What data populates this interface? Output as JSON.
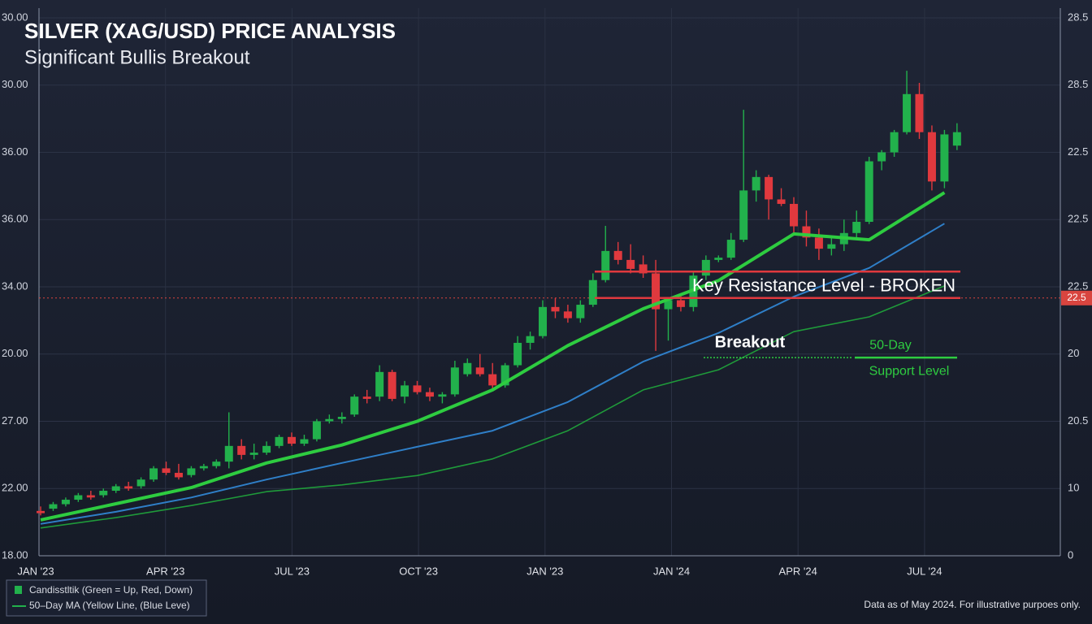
{
  "chart_data": {
    "type": "candlestick",
    "title": "SILVER (XAG/USD) PRICE ANALYSIS",
    "subtitle": "Significant Bullis Breakout",
    "ylim": [
      18,
      30
    ],
    "left_axis_labels": [
      "30.00",
      "30.00",
      "36.00",
      "36.00",
      "34.00",
      "20.00",
      "27.00",
      "22.00",
      "18.00"
    ],
    "right_axis_labels": [
      "28.5",
      "28.5",
      "22.5",
      "22.5",
      "22.5",
      "20",
      "20.5",
      "10",
      "0"
    ],
    "x_labels": [
      "JAN '23",
      "APR '23",
      "JUL '23",
      "OCT '23",
      "JAN '23",
      "JAN '24",
      "APR '24",
      "JUL '24"
    ],
    "up_color": "#22b14c",
    "down_color": "#e0393e",
    "candles": [
      {
        "open": 19.0,
        "high": 19.1,
        "low": 18.9,
        "close": 18.95
      },
      {
        "open": 19.05,
        "high": 19.2,
        "low": 19.0,
        "close": 19.15
      },
      {
        "open": 19.15,
        "high": 19.3,
        "low": 19.1,
        "close": 19.25
      },
      {
        "open": 19.25,
        "high": 19.4,
        "low": 19.2,
        "close": 19.35
      },
      {
        "open": 19.35,
        "high": 19.45,
        "low": 19.25,
        "close": 19.3
      },
      {
        "open": 19.35,
        "high": 19.5,
        "low": 19.3,
        "close": 19.45
      },
      {
        "open": 19.45,
        "high": 19.6,
        "low": 19.4,
        "close": 19.55
      },
      {
        "open": 19.55,
        "high": 19.65,
        "low": 19.45,
        "close": 19.5
      },
      {
        "open": 19.55,
        "high": 19.75,
        "low": 19.5,
        "close": 19.7
      },
      {
        "open": 19.7,
        "high": 20.0,
        "low": 19.65,
        "close": 19.95
      },
      {
        "open": 19.95,
        "high": 20.1,
        "low": 19.8,
        "close": 19.85
      },
      {
        "open": 19.85,
        "high": 20.05,
        "low": 19.7,
        "close": 19.75
      },
      {
        "open": 19.8,
        "high": 20.0,
        "low": 19.75,
        "close": 19.95
      },
      {
        "open": 19.95,
        "high": 20.05,
        "low": 19.9,
        "close": 20.0
      },
      {
        "open": 20.0,
        "high": 20.15,
        "low": 19.95,
        "close": 20.1
      },
      {
        "open": 20.1,
        "high": 21.2,
        "low": 19.95,
        "close": 20.45
      },
      {
        "open": 20.45,
        "high": 20.6,
        "low": 20.15,
        "close": 20.25
      },
      {
        "open": 20.25,
        "high": 20.5,
        "low": 20.15,
        "close": 20.3
      },
      {
        "open": 20.3,
        "high": 20.55,
        "low": 20.25,
        "close": 20.45
      },
      {
        "open": 20.45,
        "high": 20.7,
        "low": 20.4,
        "close": 20.65
      },
      {
        "open": 20.65,
        "high": 20.75,
        "low": 20.45,
        "close": 20.5
      },
      {
        "open": 20.5,
        "high": 20.7,
        "low": 20.45,
        "close": 20.6
      },
      {
        "open": 20.6,
        "high": 21.05,
        "low": 20.55,
        "close": 21.0
      },
      {
        "open": 21.0,
        "high": 21.15,
        "low": 20.95,
        "close": 21.05
      },
      {
        "open": 21.05,
        "high": 21.2,
        "low": 20.95,
        "close": 21.1
      },
      {
        "open": 21.15,
        "high": 21.6,
        "low": 21.1,
        "close": 21.55
      },
      {
        "open": 21.55,
        "high": 21.7,
        "low": 21.4,
        "close": 21.5
      },
      {
        "open": 21.55,
        "high": 22.25,
        "low": 21.45,
        "close": 22.1
      },
      {
        "open": 22.1,
        "high": 22.15,
        "low": 21.45,
        "close": 21.5
      },
      {
        "open": 21.55,
        "high": 21.9,
        "low": 21.4,
        "close": 21.8
      },
      {
        "open": 21.8,
        "high": 21.9,
        "low": 21.6,
        "close": 21.65
      },
      {
        "open": 21.65,
        "high": 21.75,
        "low": 21.45,
        "close": 21.55
      },
      {
        "open": 21.55,
        "high": 21.65,
        "low": 21.4,
        "close": 21.6
      },
      {
        "open": 21.6,
        "high": 22.35,
        "low": 21.55,
        "close": 22.2
      },
      {
        "open": 22.05,
        "high": 22.4,
        "low": 22.0,
        "close": 22.3
      },
      {
        "open": 22.2,
        "high": 22.5,
        "low": 22.0,
        "close": 22.05
      },
      {
        "open": 22.05,
        "high": 22.3,
        "low": 21.7,
        "close": 21.8
      },
      {
        "open": 21.8,
        "high": 22.3,
        "low": 21.75,
        "close": 22.25
      },
      {
        "open": 22.25,
        "high": 22.9,
        "low": 22.2,
        "close": 22.75
      },
      {
        "open": 22.75,
        "high": 23.0,
        "low": 22.6,
        "close": 22.9
      },
      {
        "open": 22.9,
        "high": 23.7,
        "low": 22.85,
        "close": 23.55
      },
      {
        "open": 23.55,
        "high": 23.75,
        "low": 23.3,
        "close": 23.45
      },
      {
        "open": 23.45,
        "high": 23.6,
        "low": 23.2,
        "close": 23.3
      },
      {
        "open": 23.3,
        "high": 23.7,
        "low": 23.2,
        "close": 23.6
      },
      {
        "open": 23.6,
        "high": 24.3,
        "low": 23.55,
        "close": 24.15
      },
      {
        "open": 24.15,
        "high": 25.36,
        "low": 24.1,
        "close": 24.8
      },
      {
        "open": 24.8,
        "high": 25.0,
        "low": 24.5,
        "close": 24.6
      },
      {
        "open": 24.6,
        "high": 24.95,
        "low": 24.3,
        "close": 24.4
      },
      {
        "open": 24.5,
        "high": 24.7,
        "low": 24.2,
        "close": 24.3
      },
      {
        "open": 24.3,
        "high": 24.6,
        "low": 22.57,
        "close": 23.5
      },
      {
        "open": 23.5,
        "high": 23.75,
        "low": 22.8,
        "close": 23.7
      },
      {
        "open": 23.7,
        "high": 23.8,
        "low": 23.45,
        "close": 23.55
      },
      {
        "open": 23.55,
        "high": 24.35,
        "low": 23.45,
        "close": 24.25
      },
      {
        "open": 24.25,
        "high": 24.7,
        "low": 24.15,
        "close": 24.6
      },
      {
        "open": 24.6,
        "high": 24.7,
        "low": 24.55,
        "close": 24.65
      },
      {
        "open": 24.65,
        "high": 25.2,
        "low": 24.6,
        "close": 25.05
      },
      {
        "open": 25.05,
        "high": 27.95,
        "low": 25.0,
        "close": 26.15
      },
      {
        "open": 26.15,
        "high": 26.6,
        "low": 25.9,
        "close": 26.45
      },
      {
        "open": 26.45,
        "high": 26.5,
        "low": 25.5,
        "close": 25.95
      },
      {
        "open": 25.95,
        "high": 26.2,
        "low": 25.8,
        "close": 25.85
      },
      {
        "open": 25.85,
        "high": 26.0,
        "low": 25.2,
        "close": 25.35
      },
      {
        "open": 25.35,
        "high": 25.7,
        "low": 24.9,
        "close": 25.1
      },
      {
        "open": 25.1,
        "high": 25.3,
        "low": 24.6,
        "close": 24.85
      },
      {
        "open": 24.85,
        "high": 25.1,
        "low": 24.7,
        "close": 24.95
      },
      {
        "open": 24.95,
        "high": 25.5,
        "low": 24.8,
        "close": 25.2
      },
      {
        "open": 25.2,
        "high": 25.7,
        "low": 25.1,
        "close": 25.45
      },
      {
        "open": 25.45,
        "high": 26.9,
        "low": 25.4,
        "close": 26.8
      },
      {
        "open": 26.8,
        "high": 27.05,
        "low": 26.6,
        "close": 27.0
      },
      {
        "open": 27.0,
        "high": 27.5,
        "low": 26.9,
        "close": 27.45
      },
      {
        "open": 27.45,
        "high": 28.82,
        "low": 27.4,
        "close": 28.3
      },
      {
        "open": 28.3,
        "high": 28.55,
        "low": 27.3,
        "close": 27.45
      },
      {
        "open": 27.45,
        "high": 27.6,
        "low": 26.15,
        "close": 26.35
      },
      {
        "open": 26.35,
        "high": 27.5,
        "low": 26.2,
        "close": 27.4
      },
      {
        "open": 27.15,
        "high": 27.65,
        "low": 27.05,
        "close": 27.45
      }
    ],
    "lines": [
      {
        "color": "#2ecc40",
        "width": 4,
        "x": [
          0,
          6,
          12,
          18,
          24,
          30,
          36,
          42,
          48,
          54,
          60,
          66,
          72
        ],
        "values": [
          18.8,
          19.16,
          19.52,
          20.07,
          20.47,
          21.0,
          21.7,
          22.69,
          23.51,
          24.14,
          25.18,
          25.05,
          26.1
        ]
      },
      {
        "color": "#2f7fc8",
        "width": 2,
        "x": [
          0,
          6,
          12,
          18,
          24,
          30,
          36,
          42,
          48,
          54,
          60,
          66,
          72
        ],
        "values": [
          18.71,
          18.98,
          19.3,
          19.7,
          20.07,
          20.43,
          20.79,
          21.43,
          22.33,
          22.97,
          23.78,
          24.42,
          25.41
        ]
      },
      {
        "color": "#1f9a3a",
        "width": 1.6,
        "x": [
          0,
          6,
          12,
          18,
          24,
          30,
          36,
          42,
          48,
          54,
          60,
          66,
          72
        ],
        "values": [
          18.62,
          18.85,
          19.12,
          19.43,
          19.58,
          19.79,
          20.16,
          20.79,
          21.7,
          22.15,
          23.0,
          23.33,
          24.02
        ]
      }
    ],
    "resistance_zone": [
      23.75,
      24.34
    ],
    "resistance_label": "Key Resistance Level - BROKEN",
    "price_tag": "22.5",
    "support_level": 22.42,
    "breakout_label": "Breakout",
    "support_label_1": "50-Day",
    "support_label_2": "Support Level",
    "legend": [
      "Candisstltik (Green = Up, Red, Down)",
      "50–Day MA (Yellow Line, (Blue Leve)"
    ],
    "footnote": "Data as of May 2024. For illustrative purpoes only."
  }
}
